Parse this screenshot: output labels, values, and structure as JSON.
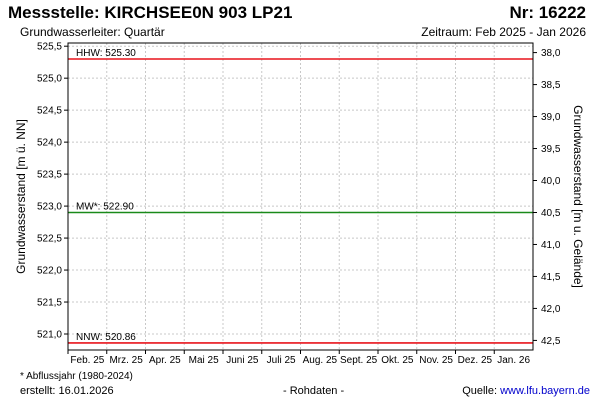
{
  "header": {
    "title": "Messstelle: KIRCHSEE0N 903 LP21",
    "number": "Nr: 16222",
    "aquifer": "Grundwasserleiter: Quartär",
    "period": "Zeitraum: Feb 2025 - Jan 2026"
  },
  "footer": {
    "footnote": "* Abflussjahr (1980-2024)",
    "created": "erstellt:  16.01.2026",
    "rawdata": "- Rohdaten -",
    "source_label": "Quelle: ",
    "source_url": "www.lfu.bayern.de"
  },
  "chart_data": {
    "type": "line",
    "xlabel": "",
    "ylabel": "Grundwasserstand [m ü. NN]",
    "ylabel_right": "Grundwasserstand [m u. Gelände]",
    "ylim": [
      520.75,
      525.55
    ],
    "ylim_right": [
      42.65,
      37.85
    ],
    "yticks": [
      {
        "value": 521.0,
        "label": "521,0"
      },
      {
        "value": 521.5,
        "label": "521,5"
      },
      {
        "value": 522.0,
        "label": "522,0"
      },
      {
        "value": 522.5,
        "label": "522,5"
      },
      {
        "value": 523.0,
        "label": "523,0"
      },
      {
        "value": 523.5,
        "label": "523,5"
      },
      {
        "value": 524.0,
        "label": "524,0"
      },
      {
        "value": 524.5,
        "label": "524,5"
      },
      {
        "value": 525.0,
        "label": "525,0"
      },
      {
        "value": 525.5,
        "label": "525,5"
      }
    ],
    "yticks_right": [
      {
        "value": 38.0,
        "label": "38,0"
      },
      {
        "value": 38.5,
        "label": "38,5"
      },
      {
        "value": 39.0,
        "label": "39,0"
      },
      {
        "value": 39.5,
        "label": "39,5"
      },
      {
        "value": 40.0,
        "label": "40,0"
      },
      {
        "value": 40.5,
        "label": "40,5"
      },
      {
        "value": 41.0,
        "label": "41,0"
      },
      {
        "value": 41.5,
        "label": "41,5"
      },
      {
        "value": 42.0,
        "label": "42,0"
      },
      {
        "value": 42.5,
        "label": "42,5"
      }
    ],
    "categories": [
      "Feb. 25",
      "Mrz. 25",
      "Apr. 25",
      "Mai 25",
      "Juni 25",
      "Juli 25",
      "Aug. 25",
      "Sept. 25",
      "Okt. 25",
      "Nov. 25",
      "Dez. 25",
      "Jan. 26"
    ],
    "reference_lines": [
      {
        "label": "HHW: 525.30",
        "value": 525.3,
        "color": "#e8141c"
      },
      {
        "label": "MW*: 522.90",
        "value": 522.9,
        "color": "#1a8a1a"
      },
      {
        "label": "NNW: 520.86",
        "value": 520.86,
        "color": "#e8141c"
      }
    ],
    "series": [],
    "grid": true,
    "grid_color": "#c8c8c8"
  }
}
